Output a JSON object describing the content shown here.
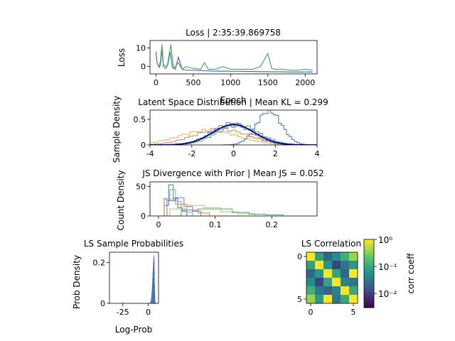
{
  "chart_data": [
    {
      "id": "loss",
      "type": "line",
      "title": "Loss | 2:35:39.869758",
      "xlabel": "Epoch",
      "ylabel": "Loss",
      "xlim": [
        -80,
        2160
      ],
      "ylim": [
        -4,
        14
      ],
      "xticks": [
        0,
        500,
        1000,
        1500,
        2000
      ],
      "yticks": [
        0,
        10
      ],
      "grid": false,
      "series": [
        {
          "color": "#4c72b0",
          "x": [
            0,
            15,
            30,
            45,
            60,
            80,
            100,
            130,
            160,
            190,
            220,
            260,
            300,
            350,
            400,
            500,
            600,
            700,
            800,
            900,
            1000,
            1100,
            1200,
            1300,
            1400,
            1500,
            1600,
            1700,
            1800,
            1900,
            2000,
            2100
          ],
          "y": [
            8,
            2,
            0.5,
            -0.5,
            1,
            9,
            0,
            -1,
            1,
            8,
            -0.5,
            -1.5,
            5,
            -1.5,
            -2,
            -2,
            -2.2,
            -2.4,
            -2.5,
            -2.5,
            -2.6,
            -2.6,
            -2.7,
            -2.7,
            -2.8,
            -2.8,
            -2.9,
            -2.9,
            -3,
            -3,
            -3,
            -3
          ]
        },
        {
          "color": "#55a868",
          "x": [
            0,
            20,
            40,
            60,
            80,
            100,
            150,
            200,
            220,
            240,
            300,
            350,
            400,
            500,
            600,
            650,
            700,
            800,
            900,
            1000,
            1100,
            1200,
            1300,
            1400,
            1500,
            1550,
            1600,
            1700,
            1800,
            1900,
            2000,
            2100
          ],
          "y": [
            6,
            1,
            0,
            3,
            12,
            1,
            0,
            12,
            4,
            -1,
            2,
            -1.5,
            0,
            -1,
            -1.5,
            2,
            -1.5,
            -1.5,
            0,
            -1.5,
            -1.5,
            -1.5,
            -1.5,
            0,
            7,
            -1,
            -1.5,
            -1.5,
            -2,
            -2,
            -1.5,
            -2
          ]
        }
      ]
    },
    {
      "id": "latent",
      "type": "histogram",
      "title": "Latent Space Distribution | Mean KL = 0.299",
      "xlabel": "",
      "ylabel": "Sample Density",
      "xlim": [
        -4,
        4
      ],
      "ylim": [
        0,
        0.68
      ],
      "xticks": [
        -4,
        -2,
        0,
        2,
        4
      ],
      "yticks": [
        0.0,
        0.5
      ],
      "series": [
        {
          "color": "#4c72b0",
          "mean": 1.7,
          "sd": 0.6,
          "range": [
            -0.5,
            3.8
          ]
        },
        {
          "color": "#dd8452",
          "mean": -0.6,
          "sd": 1.3,
          "range": [
            -4,
            3
          ]
        },
        {
          "color": "#55a868",
          "mean": 0.2,
          "sd": 1.0,
          "range": [
            -3,
            3.5
          ]
        },
        {
          "color": "#ccb974",
          "mean": -1.2,
          "sd": 1.4,
          "range": [
            -4,
            2.5
          ]
        },
        {
          "color": "#8172b3",
          "mean": -0.1,
          "sd": 0.95,
          "range": [
            -3,
            3
          ]
        },
        {
          "color": "#64b5cd",
          "mean": 0.05,
          "sd": 1.1,
          "range": [
            -3,
            3.2
          ]
        }
      ],
      "prior": {
        "color": "#000080",
        "mean": 0,
        "sd": 1
      }
    },
    {
      "id": "js",
      "type": "histogram",
      "title": "JS Divergence with Prior | Mean JS = 0.052",
      "xlabel": "",
      "ylabel": "Count Density",
      "xlim": [
        -0.015,
        0.28
      ],
      "ylim": [
        0,
        58
      ],
      "xticks": [
        0.0,
        0.1,
        0.2
      ],
      "yticks": [
        0,
        50
      ],
      "series": [
        {
          "color": "#4c72b0",
          "edges": [
            0.01,
            0.018,
            0.026,
            0.034,
            0.042,
            0.05
          ],
          "heights": [
            18,
            53,
            30,
            14,
            8
          ]
        },
        {
          "color": "#64b5cd",
          "edges": [
            0.01,
            0.02,
            0.03,
            0.04,
            0.05,
            0.06
          ],
          "heights": [
            30,
            45,
            25,
            12,
            6
          ]
        },
        {
          "color": "#dd8452",
          "edges": [
            0.01,
            0.03,
            0.05,
            0.07,
            0.09
          ],
          "heights": [
            28,
            20,
            10,
            5
          ]
        },
        {
          "color": "#8172b3",
          "edges": [
            0.015,
            0.03,
            0.045,
            0.06,
            0.075
          ],
          "heights": [
            26,
            31,
            16,
            8
          ]
        },
        {
          "color": "#ccb974",
          "edges": [
            0.02,
            0.05,
            0.08,
            0.11,
            0.14,
            0.17
          ],
          "heights": [
            12,
            18,
            14,
            7,
            4
          ]
        },
        {
          "color": "#55a868",
          "edges": [
            0.04,
            0.07,
            0.1,
            0.13,
            0.16,
            0.19,
            0.22
          ],
          "heights": [
            10,
            12,
            12,
            6,
            3,
            2
          ]
        }
      ]
    },
    {
      "id": "logprob",
      "type": "histogram",
      "title": "LS Sample Probabilities",
      "xlabel": "Log-Prob",
      "ylabel": "Prob Density",
      "xlim": [
        -38,
        10
      ],
      "ylim": [
        0,
        0.25
      ],
      "xticks": [
        -25,
        0
      ],
      "yticks": [
        0.0,
        0.2
      ],
      "color": "#4c72b0",
      "peak": 5.5,
      "peak_height": 0.235
    },
    {
      "id": "corr",
      "type": "heatmap",
      "title": "LS Correlation",
      "xlabel": "",
      "ylabel": "",
      "xticks": [
        0,
        5
      ],
      "yticks": [
        0,
        5
      ],
      "scale": "log",
      "colorbar_label": "corr coeff",
      "colorbar_ticks": [
        "10⁰",
        "10⁻¹",
        "10⁻²"
      ],
      "matrix": [
        [
          1.0,
          0.08,
          0.02,
          0.05,
          0.12,
          0.4
        ],
        [
          0.08,
          1.0,
          0.06,
          0.01,
          0.03,
          0.07
        ],
        [
          0.02,
          0.06,
          1.0,
          0.09,
          0.02,
          1.0
        ],
        [
          0.05,
          0.01,
          0.09,
          1.0,
          0.04,
          0.03
        ],
        [
          0.12,
          0.03,
          0.02,
          0.04,
          1.0,
          0.1
        ],
        [
          0.4,
          0.07,
          1.0,
          0.03,
          0.1,
          1.0
        ]
      ]
    }
  ]
}
